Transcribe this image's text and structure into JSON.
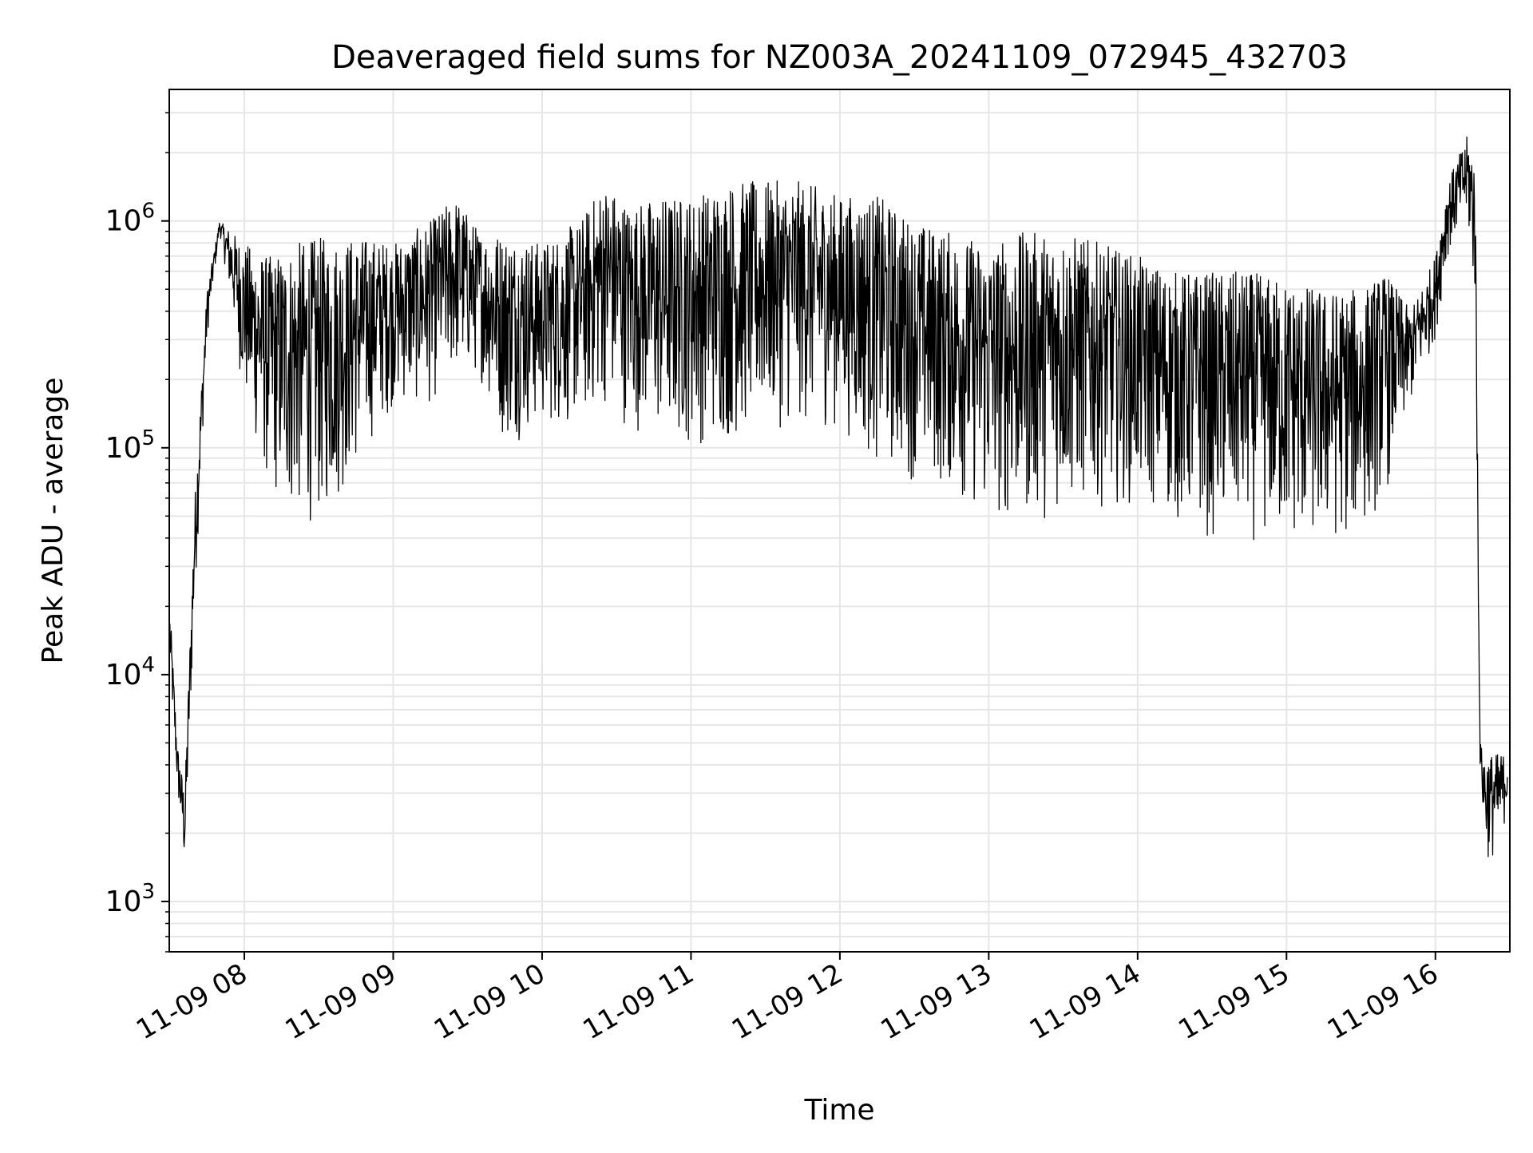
{
  "chart_data": {
    "type": "line",
    "title": "Deaveraged field sums for NZ003A_20241109_072945_432703",
    "xlabel": "Time",
    "ylabel": "Peak ADU - average",
    "x_scale": "time",
    "y_scale": "log",
    "xlim": [
      "2024-11-09 07:29:45",
      "2024-11-09 16:30"
    ],
    "ylim": [
      600,
      3800000
    ],
    "x_ticks": [
      "11-09 08",
      "11-09 09",
      "11-09 10",
      "11-09 11",
      "11-09 12",
      "11-09 13",
      "11-09 14",
      "11-09 15",
      "11-09 16"
    ],
    "y_ticks": [
      1000,
      10000,
      100000,
      1000000
    ],
    "y_tick_labels": [
      {
        "base": "10",
        "exp": "3"
      },
      {
        "base": "10",
        "exp": "4"
      },
      {
        "base": "10",
        "exp": "5"
      },
      {
        "base": "10",
        "exp": "6"
      }
    ],
    "grid": true,
    "line_color": "#000000",
    "grid_color": "#e6e6e6",
    "series": [
      {
        "description": "noisy time series; low-high band per time",
        "x": [
          "07:30",
          "07:33",
          "07:36",
          "07:40",
          "07:45",
          "07:50",
          "07:55",
          "08:00",
          "08:10",
          "08:20",
          "08:30",
          "08:40",
          "08:50",
          "09:00",
          "09:15",
          "09:25",
          "09:35",
          "09:45",
          "10:00",
          "10:15",
          "10:25",
          "10:35",
          "10:50",
          "11:00",
          "11:15",
          "11:30",
          "11:45",
          "12:00",
          "12:15",
          "12:30",
          "12:45",
          "13:00",
          "13:15",
          "13:30",
          "13:45",
          "14:00",
          "14:15",
          "14:30",
          "14:45",
          "15:00",
          "15:15",
          "15:30",
          "15:40",
          "15:50",
          "16:00",
          "16:05",
          "16:10",
          "16:13",
          "16:16",
          "16:18",
          "16:20",
          "16:25",
          "16:29"
        ],
        "low": [
          10000,
          3000,
          1300,
          20000,
          300000,
          900000,
          400000,
          150000,
          60000,
          45000,
          45000,
          60000,
          100000,
          150000,
          150000,
          200000,
          200000,
          100000,
          120000,
          120000,
          150000,
          120000,
          100000,
          100000,
          100000,
          120000,
          120000,
          120000,
          80000,
          70000,
          60000,
          45000,
          45000,
          50000,
          55000,
          55000,
          45000,
          38000,
          38000,
          35000,
          35000,
          40000,
          60000,
          150000,
          300000,
          700000,
          900000,
          900000,
          400000,
          4000,
          1500,
          1500,
          2500
        ],
        "high": [
          20000,
          5000,
          3000,
          60000,
          500000,
          1000000,
          900000,
          800000,
          700000,
          800000,
          850000,
          850000,
          850000,
          800000,
          1000000,
          1300000,
          900000,
          900000,
          800000,
          1000000,
          1500000,
          1200000,
          1300000,
          1300000,
          1500000,
          1500000,
          1500000,
          1300000,
          1300000,
          1000000,
          900000,
          800000,
          900000,
          900000,
          800000,
          700000,
          600000,
          600000,
          600000,
          550000,
          500000,
          500000,
          600000,
          400000,
          700000,
          1500000,
          2000000,
          2400000,
          2000000,
          5000,
          4500,
          4500,
          4500
        ]
      }
    ]
  }
}
